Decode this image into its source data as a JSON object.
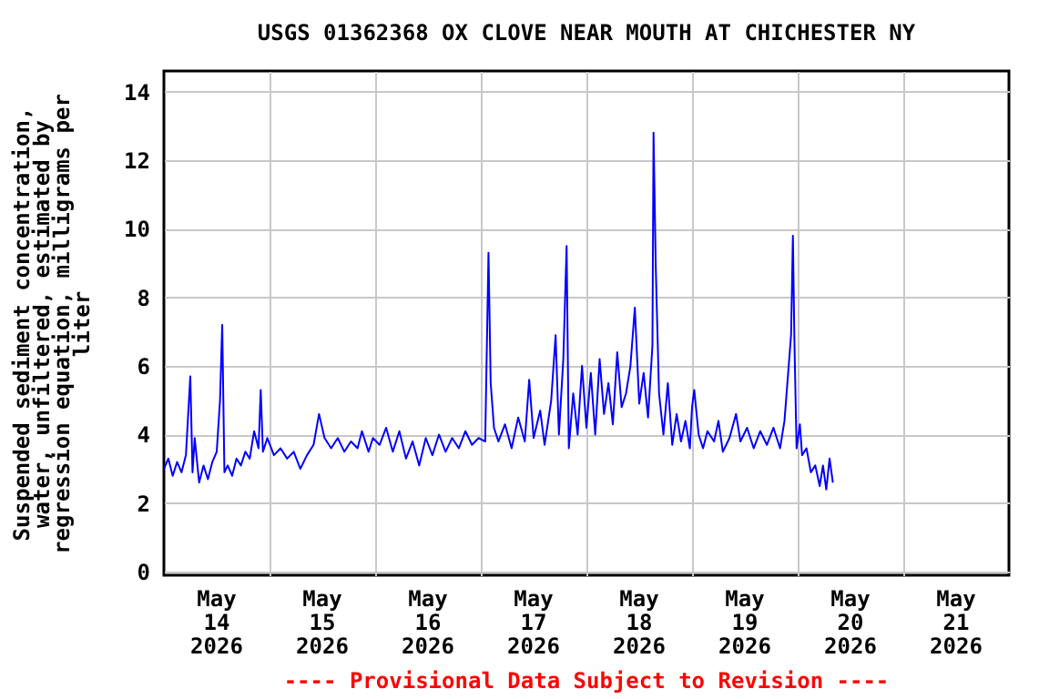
{
  "chart_data": {
    "type": "line",
    "title": "USGS 01362368 OX CLOVE NEAR MOUTH AT CHICHESTER NY",
    "ylabel": "Suspended sediment concentration, water, unfiltered, estimated by regression equation, milligrams per liter",
    "annotations": [
      "---- Provisional Data Subject to Revision ----"
    ],
    "xlim": [
      "2026-05-14T00:00",
      "2026-05-22T00:00"
    ],
    "xticks": [
      {
        "value": "2026-05-14T12:00",
        "label": "May\n14\n2026"
      },
      {
        "value": "2026-05-15T00:00",
        "label": null
      },
      {
        "value": "2026-05-15T12:00",
        "label": "May\n15\n2026"
      },
      {
        "value": "2026-05-16T00:00",
        "label": null
      },
      {
        "value": "2026-05-16T12:00",
        "label": "May\n16\n2026"
      },
      {
        "value": "2026-05-17T00:00",
        "label": null
      },
      {
        "value": "2026-05-17T12:00",
        "label": "May\n17\n2026"
      },
      {
        "value": "2026-05-18T00:00",
        "label": null
      },
      {
        "value": "2026-05-18T12:00",
        "label": "May\n18\n2026"
      },
      {
        "value": "2026-05-19T00:00",
        "label": null
      },
      {
        "value": "2026-05-19T12:00",
        "label": "May\n19\n2026"
      },
      {
        "value": "2026-05-20T00:00",
        "label": null
      },
      {
        "value": "2026-05-20T12:00",
        "label": "May\n20\n2026"
      },
      {
        "value": "2026-05-21T00:00",
        "label": null
      },
      {
        "value": "2026-05-21T12:00",
        "label": "May\n21\n2026"
      }
    ],
    "ylim": [
      -0.1,
      14.6
    ],
    "yticks": [
      0,
      2,
      4,
      6,
      8,
      10,
      12,
      14
    ],
    "grid": true,
    "legend": false,
    "line_style": "solid",
    "marker": "none",
    "x": [
      "2026-05-14T00:00",
      "2026-05-14T01:00",
      "2026-05-14T02:00",
      "2026-05-14T03:00",
      "2026-05-14T04:00",
      "2026-05-14T05:00",
      "2026-05-14T06:00",
      "2026-05-14T06:30",
      "2026-05-14T07:00",
      "2026-05-14T08:00",
      "2026-05-14T09:00",
      "2026-05-14T10:00",
      "2026-05-14T11:00",
      "2026-05-14T12:00",
      "2026-05-14T12:45",
      "2026-05-14T13:15",
      "2026-05-14T13:45",
      "2026-05-14T14:30",
      "2026-05-14T15:30",
      "2026-05-14T16:30",
      "2026-05-14T17:30",
      "2026-05-14T18:30",
      "2026-05-14T19:30",
      "2026-05-14T20:30",
      "2026-05-14T21:30",
      "2026-05-14T22:00",
      "2026-05-14T22:30",
      "2026-05-14T23:30",
      "2026-05-15T01:00",
      "2026-05-15T02:30",
      "2026-05-15T04:00",
      "2026-05-15T05:30",
      "2026-05-15T07:00",
      "2026-05-15T08:30",
      "2026-05-15T10:00",
      "2026-05-15T11:15",
      "2026-05-15T12:30",
      "2026-05-15T14:00",
      "2026-05-15T15:30",
      "2026-05-15T17:00",
      "2026-05-15T18:30",
      "2026-05-15T20:00",
      "2026-05-15T21:00",
      "2026-05-15T22:30",
      "2026-05-15T23:30",
      "2026-05-16T01:00",
      "2026-05-16T02:30",
      "2026-05-16T04:00",
      "2026-05-16T05:30",
      "2026-05-16T07:00",
      "2026-05-16T08:30",
      "2026-05-16T10:00",
      "2026-05-16T11:30",
      "2026-05-16T13:00",
      "2026-05-16T14:30",
      "2026-05-16T16:00",
      "2026-05-16T17:30",
      "2026-05-16T19:00",
      "2026-05-16T20:30",
      "2026-05-16T22:00",
      "2026-05-16T23:30",
      "2026-05-17T01:00",
      "2026-05-17T01:45",
      "2026-05-17T02:15",
      "2026-05-17T03:00",
      "2026-05-17T04:00",
      "2026-05-17T05:30",
      "2026-05-17T07:00",
      "2026-05-17T08:30",
      "2026-05-17T10:00",
      "2026-05-17T11:00",
      "2026-05-17T12:00",
      "2026-05-17T13:30",
      "2026-05-17T14:30",
      "2026-05-17T16:00",
      "2026-05-17T17:00",
      "2026-05-17T17:45",
      "2026-05-17T18:45",
      "2026-05-17T19:30",
      "2026-05-17T20:00",
      "2026-05-17T21:00",
      "2026-05-17T22:00",
      "2026-05-17T23:00",
      "2026-05-18T00:00",
      "2026-05-18T01:00",
      "2026-05-18T02:00",
      "2026-05-18T03:00",
      "2026-05-18T04:00",
      "2026-05-18T05:00",
      "2026-05-18T06:00",
      "2026-05-18T07:00",
      "2026-05-18T08:00",
      "2026-05-18T09:00",
      "2026-05-18T10:00",
      "2026-05-18T11:00",
      "2026-05-18T12:00",
      "2026-05-18T13:00",
      "2026-05-18T14:00",
      "2026-05-18T15:00",
      "2026-05-18T15:15",
      "2026-05-18T15:45",
      "2026-05-18T16:30",
      "2026-05-18T17:30",
      "2026-05-18T18:30",
      "2026-05-18T19:30",
      "2026-05-18T20:30",
      "2026-05-18T21:30",
      "2026-05-18T22:30",
      "2026-05-18T23:30",
      "2026-05-19T00:00",
      "2026-05-19T00:30",
      "2026-05-19T01:30",
      "2026-05-19T02:30",
      "2026-05-19T03:30",
      "2026-05-19T05:00",
      "2026-05-19T06:00",
      "2026-05-19T07:00",
      "2026-05-19T08:30",
      "2026-05-19T10:00",
      "2026-05-19T11:00",
      "2026-05-19T12:30",
      "2026-05-19T14:00",
      "2026-05-19T15:30",
      "2026-05-19T17:00",
      "2026-05-19T18:30",
      "2026-05-19T20:00",
      "2026-05-19T21:00",
      "2026-05-19T22:30",
      "2026-05-19T22:55",
      "2026-05-19T23:15",
      "2026-05-19T23:45",
      "2026-05-20T00:30",
      "2026-05-20T01:00",
      "2026-05-20T02:00",
      "2026-05-20T03:00",
      "2026-05-20T04:00",
      "2026-05-20T05:00",
      "2026-05-20T05:45",
      "2026-05-20T06:30",
      "2026-05-20T07:15",
      "2026-05-20T08:00"
    ],
    "series": [
      {
        "color": "#0000ff",
        "values": [
          3.0,
          3.3,
          2.8,
          3.2,
          2.9,
          3.4,
          5.7,
          2.9,
          3.9,
          2.6,
          3.1,
          2.7,
          3.2,
          3.5,
          5.0,
          7.2,
          2.9,
          3.1,
          2.8,
          3.3,
          3.1,
          3.5,
          3.3,
          4.1,
          3.6,
          5.3,
          3.5,
          3.9,
          3.4,
          3.6,
          3.3,
          3.5,
          3.0,
          3.4,
          3.7,
          4.6,
          3.9,
          3.6,
          3.9,
          3.5,
          3.8,
          3.6,
          4.1,
          3.5,
          3.9,
          3.7,
          4.2,
          3.5,
          4.1,
          3.3,
          3.8,
          3.1,
          3.9,
          3.4,
          4.0,
          3.5,
          3.9,
          3.6,
          4.1,
          3.7,
          3.9,
          3.8,
          9.3,
          5.5,
          4.2,
          3.8,
          4.3,
          3.6,
          4.5,
          3.8,
          5.6,
          3.9,
          4.7,
          3.7,
          5.0,
          6.9,
          4.0,
          6.2,
          9.5,
          3.6,
          5.2,
          4.0,
          6.0,
          4.2,
          5.8,
          4.0,
          6.2,
          4.6,
          5.5,
          4.3,
          6.4,
          4.8,
          5.2,
          6.0,
          7.7,
          4.9,
          5.8,
          4.5,
          6.6,
          12.8,
          8.9,
          5.2,
          4.0,
          5.5,
          3.7,
          4.6,
          3.8,
          4.4,
          3.6,
          4.8,
          5.3,
          4.0,
          3.6,
          4.1,
          3.8,
          4.4,
          3.5,
          3.9,
          4.6,
          3.8,
          4.2,
          3.6,
          4.1,
          3.7,
          4.2,
          3.6,
          4.4,
          6.9,
          9.8,
          6.8,
          3.6,
          4.3,
          3.4,
          3.6,
          2.9,
          3.1,
          2.5,
          3.1,
          2.4,
          3.3,
          2.6
        ]
      }
    ]
  }
}
